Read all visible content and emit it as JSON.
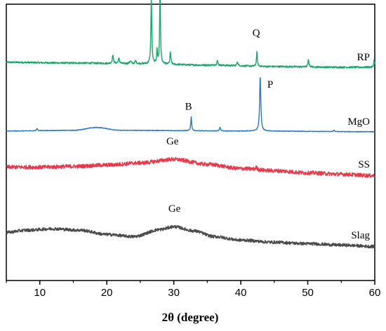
{
  "chart_data": {
    "type": "line",
    "title": "",
    "xlabel": "2θ (degree)",
    "ylabel": "",
    "xlim": [
      5,
      60
    ],
    "xticks": [
      10,
      20,
      30,
      40,
      50,
      60
    ],
    "grid": false,
    "series": [
      {
        "name": "RP",
        "color": "#1aa86a",
        "offset": 3.0,
        "baseline_points": [
          [
            5,
            0.08
          ],
          [
            15,
            0.07
          ],
          [
            25,
            0.06
          ],
          [
            35,
            0.04
          ],
          [
            45,
            0.02
          ],
          [
            55,
            0.01
          ],
          [
            60,
            0.01
          ]
        ],
        "noise": 0.012,
        "peaks": [
          {
            "x": 20.9,
            "h": 0.12,
            "w": 0.12
          },
          {
            "x": 21.8,
            "h": 0.07,
            "w": 0.15
          },
          {
            "x": 23.5,
            "h": 0.04,
            "w": 0.15
          },
          {
            "x": 24.3,
            "h": 0.04,
            "w": 0.15
          },
          {
            "x": 26.65,
            "h": 0.95,
            "w": 0.1
          },
          {
            "x": 27.5,
            "h": 0.2,
            "w": 0.1
          },
          {
            "x": 27.95,
            "h": 1.1,
            "w": 0.09
          },
          {
            "x": 29.5,
            "h": 0.18,
            "w": 0.1
          },
          {
            "x": 36.5,
            "h": 0.07,
            "w": 0.12
          },
          {
            "x": 39.5,
            "h": 0.06,
            "w": 0.12
          },
          {
            "x": 42.4,
            "h": 0.2,
            "w": 0.1
          },
          {
            "x": 50.1,
            "h": 0.1,
            "w": 0.12
          },
          {
            "x": 59.9,
            "h": 0.1,
            "w": 0.1
          }
        ],
        "annotations": [
          {
            "text": "Q",
            "x": 25.9,
            "y": 1.15
          },
          {
            "text": "Q",
            "x": 29.2,
            "y": 1.28
          },
          {
            "text": "Q",
            "x": 42.3,
            "y": 0.45
          }
        ]
      },
      {
        "name": "MgO",
        "color": "#2a78c8",
        "offset": 2.1,
        "baseline_points": [
          [
            5,
            0.01
          ],
          [
            15,
            0.02
          ],
          [
            18.5,
            0.06
          ],
          [
            22,
            0.02
          ],
          [
            40,
            0.01
          ],
          [
            60,
            0.0
          ]
        ],
        "noise": 0.004,
        "peaks": [
          {
            "x": 9.6,
            "h": 0.03,
            "w": 0.12
          },
          {
            "x": 32.6,
            "h": 0.2,
            "w": 0.1
          },
          {
            "x": 36.9,
            "h": 0.05,
            "w": 0.12
          },
          {
            "x": 42.9,
            "h": 0.78,
            "w": 0.13
          },
          {
            "x": 53.9,
            "h": 0.02,
            "w": 0.12
          }
        ],
        "annotations": [
          {
            "text": "B",
            "x": 32.2,
            "y": 0.31
          },
          {
            "text": "P",
            "x": 44.4,
            "y": 0.62
          }
        ]
      },
      {
        "name": "SS",
        "color": "#e8384a",
        "offset": 1.55,
        "baseline_points": [
          [
            5,
            0.05
          ],
          [
            10,
            0.05
          ],
          [
            15,
            0.06
          ],
          [
            20,
            0.08
          ],
          [
            25,
            0.11
          ],
          [
            30,
            0.16
          ],
          [
            35,
            0.09
          ],
          [
            40,
            0.03
          ],
          [
            45,
            0.0
          ],
          [
            50,
            -0.03
          ],
          [
            55,
            -0.05
          ],
          [
            60,
            -0.07
          ]
        ],
        "noise": 0.028,
        "peaks": [
          {
            "x": 42.3,
            "h": 0.03,
            "w": 0.2
          }
        ],
        "annotations": [
          {
            "text": "Ge",
            "x": 29.8,
            "y": 0.37
          }
        ]
      },
      {
        "name": "Slag",
        "color": "#4a4a4a",
        "offset": 0.6,
        "baseline_points": [
          [
            5,
            0.08
          ],
          [
            8,
            0.11
          ],
          [
            12,
            0.13
          ],
          [
            16,
            0.11
          ],
          [
            20,
            0.05
          ],
          [
            24,
            0.02
          ],
          [
            28,
            0.12
          ],
          [
            30,
            0.16
          ],
          [
            33,
            0.1
          ],
          [
            36,
            0.02
          ],
          [
            40,
            -0.03
          ],
          [
            45,
            -0.06
          ],
          [
            50,
            -0.08
          ],
          [
            55,
            -0.1
          ],
          [
            60,
            -0.12
          ]
        ],
        "noise": 0.022,
        "peaks": [],
        "annotations": [
          {
            "text": "Ge",
            "x": 30.1,
            "y": 0.37
          }
        ]
      }
    ],
    "ylim": [
      0,
      3.9
    ]
  }
}
